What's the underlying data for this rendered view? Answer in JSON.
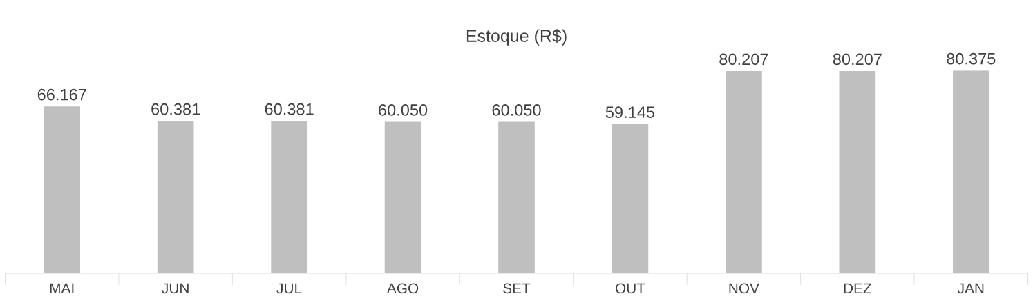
{
  "chart_data": {
    "type": "bar",
    "title": "Estoque (R$)",
    "categories": [
      "MAI",
      "JUN",
      "JUL",
      "AGO",
      "SET",
      "OUT",
      "NOV",
      "DEZ",
      "JAN"
    ],
    "values": [
      66167,
      60381,
      60381,
      60050,
      60050,
      59145,
      80207,
      80207,
      80375
    ],
    "value_labels": [
      "66.167",
      "60.381",
      "60.381",
      "60.050",
      "60.050",
      "59.145",
      "80.207",
      "80.207",
      "80.375"
    ],
    "color": "#bfbfbf",
    "grid": false,
    "legend": false
  }
}
